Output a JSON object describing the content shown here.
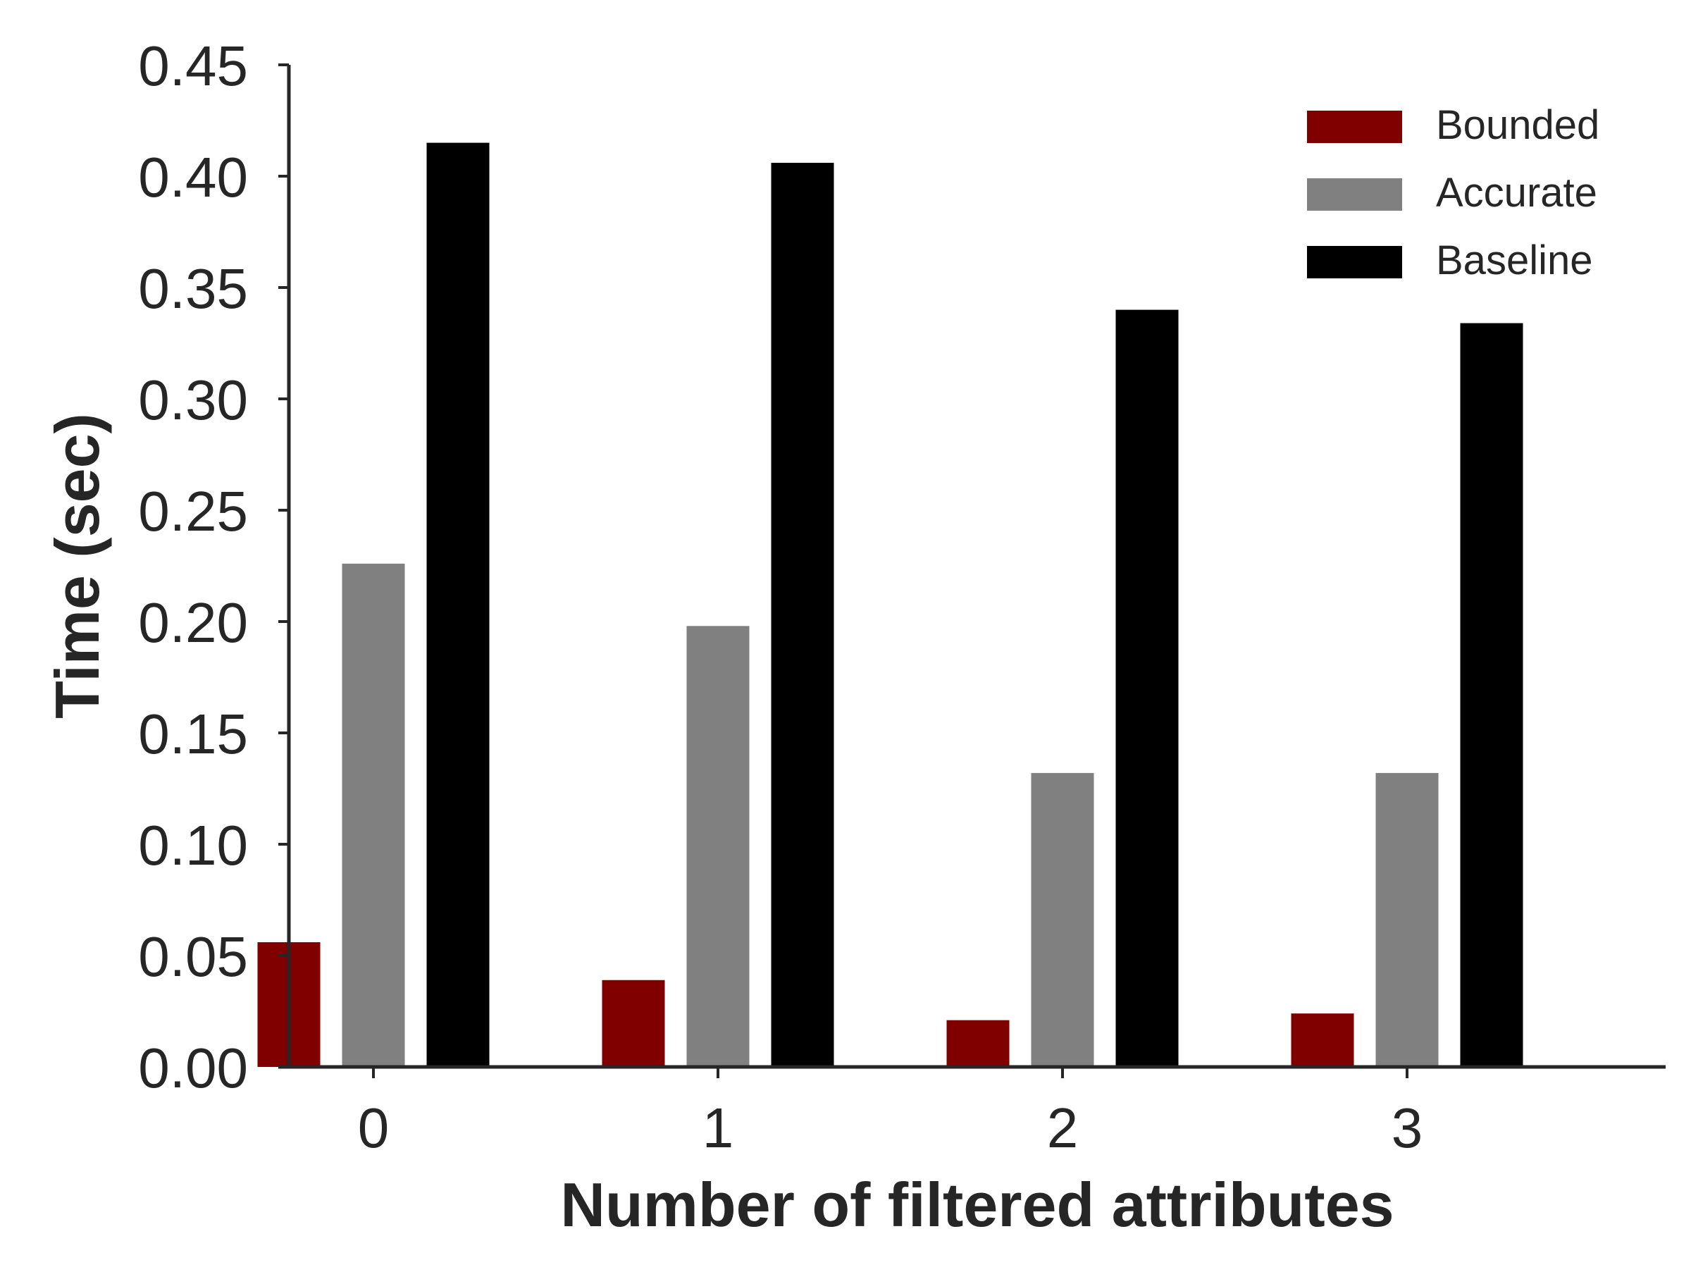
{
  "chart_data": {
    "type": "bar",
    "categories": [
      "0",
      "1",
      "2",
      "3"
    ],
    "series": [
      {
        "name": "Bounded",
        "color": "#800000",
        "values": [
          0.056,
          0.039,
          0.021,
          0.024
        ]
      },
      {
        "name": "Accurate",
        "color": "#808080",
        "values": [
          0.226,
          0.198,
          0.132,
          0.132
        ]
      },
      {
        "name": "Baseline",
        "color": "#000000",
        "values": [
          0.415,
          0.406,
          0.34,
          0.334
        ]
      }
    ],
    "xlabel": "Number of filtered attributes",
    "ylabel": "Time (sec)",
    "ylim": [
      0,
      0.45
    ],
    "yticks": [
      "0.00",
      "0.05",
      "0.10",
      "0.15",
      "0.20",
      "0.25",
      "0.30",
      "0.35",
      "0.40",
      "0.45"
    ],
    "legend_position": "top-right",
    "grid": false
  }
}
